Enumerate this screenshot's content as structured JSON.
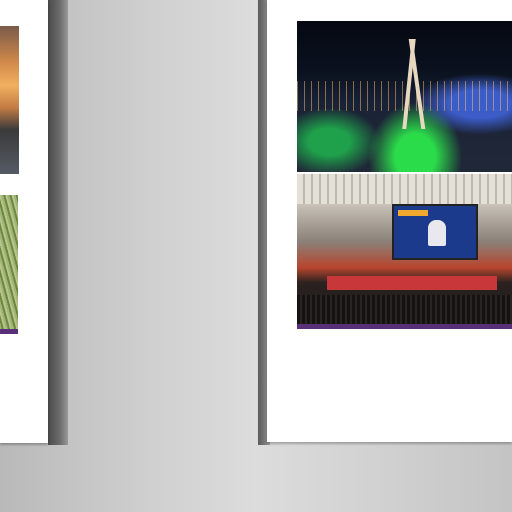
{
  "viewer": {
    "pages": [
      {
        "name": "left-page",
        "photos": [
          "sunset-photo",
          "wheat-field-photo"
        ]
      },
      {
        "name": "right-page",
        "photos": [
          "night-city-photo",
          "conference-hall-photo"
        ]
      }
    ]
  },
  "colors": {
    "background": "#d0d0d0",
    "page": "#ffffff",
    "accent_strip": "#5a2f7a"
  }
}
